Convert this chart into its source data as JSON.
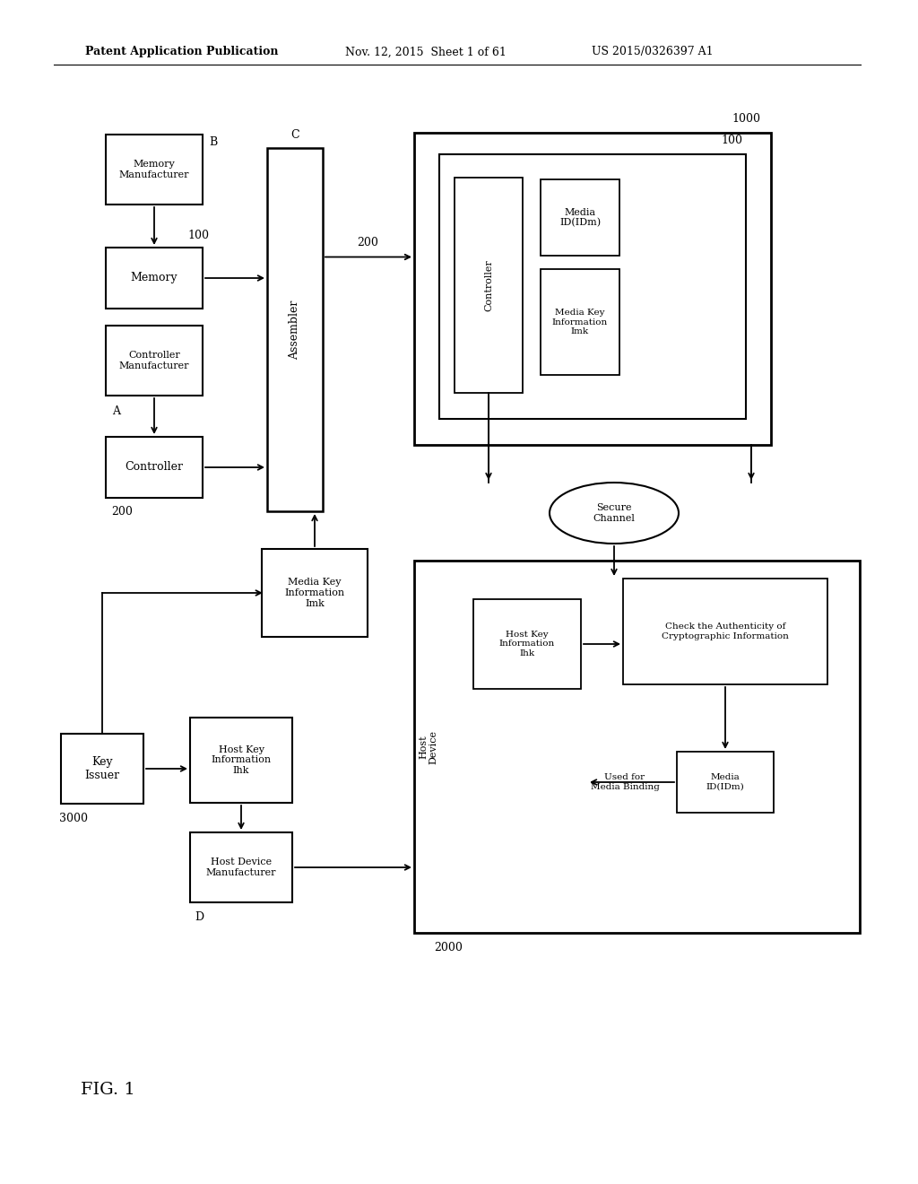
{
  "bg_color": "#ffffff",
  "header_left": "Patent Application Publication",
  "header_mid": "Nov. 12, 2015  Sheet 1 of 61",
  "header_right": "US 2015/0326397 A1",
  "fig_label": "FIG. 1"
}
